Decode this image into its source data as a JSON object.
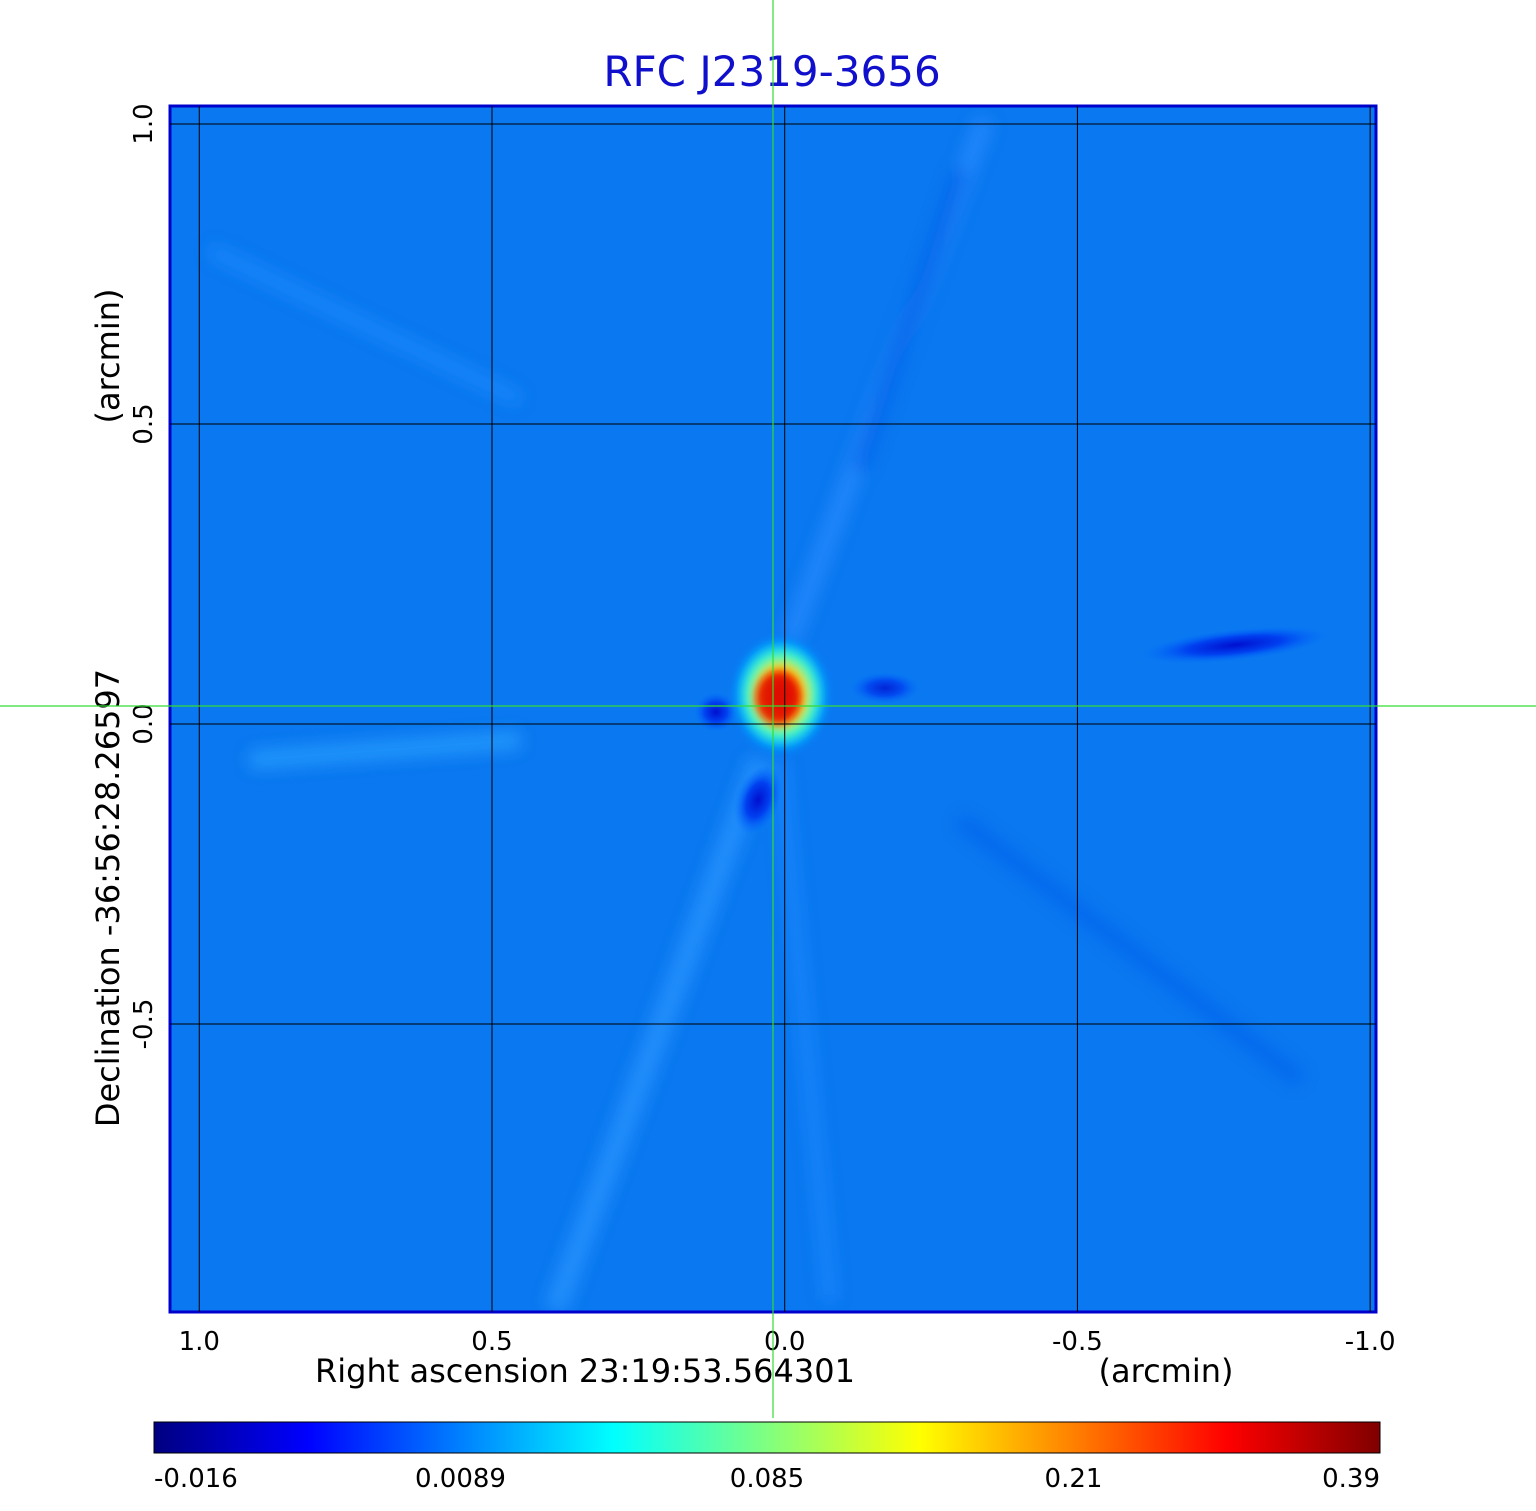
{
  "chart_data": {
    "type": "heatmap",
    "title": "RFC J2319-3656",
    "xlabel": "Right ascension  23:19:53.564301",
    "xunit": "(arcmin)",
    "ylabel": "Declination  -36:56:28.26597",
    "yunit": "(arcmin)",
    "x_ticks": [
      1.0,
      0.5,
      0.0,
      -0.5,
      -1.0
    ],
    "x_tick_labels": [
      "1.0",
      "0.5",
      "0.0",
      "-0.5",
      "-1.0"
    ],
    "y_ticks": [
      1.0,
      0.5,
      0.0,
      -0.5
    ],
    "y_tick_labels": [
      "1.0",
      "0.5",
      "0.0",
      "-0.5"
    ],
    "xlim": [
      1.05,
      -1.01
    ],
    "ylim": [
      -0.98,
      1.03
    ],
    "grid": true,
    "crosshair": {
      "x": 0.02,
      "y": 0.03,
      "color": "#33dd33"
    },
    "colormap": "jet",
    "colorbar": {
      "position": "bottom",
      "tick_labels": [
        "-0.016",
        "0.0089",
        "0.085",
        "0.21",
        "0.39"
      ],
      "colors": [
        "#000080",
        "#0000ff",
        "#0080ff",
        "#00ffff",
        "#80ff80",
        "#ffff00",
        "#ff8000",
        "#ff0000",
        "#800000"
      ]
    },
    "background_level": 0.0,
    "features": [
      {
        "name": "core",
        "x": -0.01,
        "y": 0.04,
        "peak": 0.39
      },
      {
        "name": "negative-lobe-west",
        "x": 0.1,
        "y": 0.03,
        "peak": -0.016
      },
      {
        "name": "negative-lobe-south",
        "x": 0.03,
        "y": -0.13,
        "peak": -0.016
      },
      {
        "name": "negative-lobe-east",
        "x": -0.68,
        "y": 0.13,
        "peak": -0.012
      },
      {
        "name": "negative-lobe-northeast",
        "x": -0.18,
        "y": 0.06,
        "peak": -0.008
      }
    ],
    "frame_color": "#0000cc",
    "title_color": "#1010cc"
  }
}
